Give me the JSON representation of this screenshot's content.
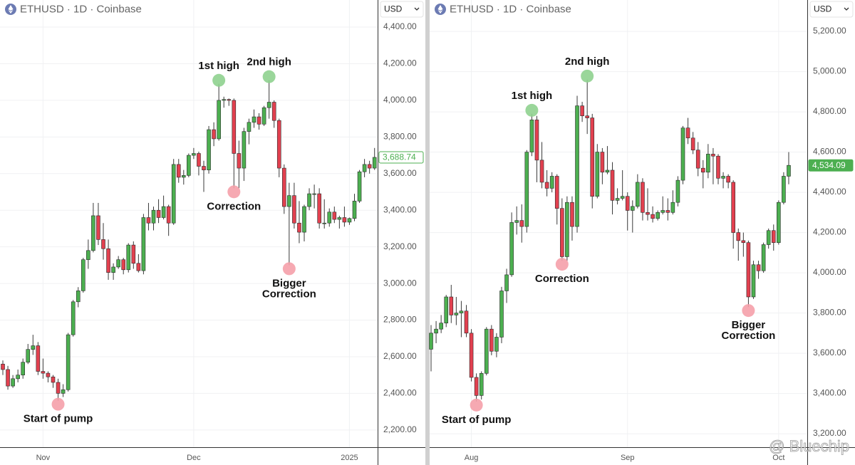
{
  "watermark": "@ Bluechip",
  "chart_data": [
    {
      "type": "candlestick",
      "title": "ETHUSD · 1D · Coinbase",
      "currency": "USD",
      "up_color": "#4caf50",
      "down_color": "#e2404f",
      "categories": [
        null,
        null,
        null,
        null,
        null,
        null,
        null,
        null,
        "Nov",
        null,
        null,
        null,
        null,
        null,
        null,
        null,
        null,
        null,
        null,
        null,
        null,
        null,
        null,
        null,
        null,
        null,
        null,
        null,
        null,
        null,
        null,
        null,
        null,
        null,
        null,
        null,
        null,
        null,
        "Dec",
        null,
        null,
        null,
        null,
        null,
        null,
        null,
        null,
        null,
        null,
        null,
        null,
        null,
        null,
        null,
        null,
        null,
        null,
        null,
        null,
        null,
        null,
        null,
        null,
        null,
        null,
        null,
        null,
        null,
        null,
        "2025",
        null,
        null,
        null,
        null,
        null
      ],
      "ohlc": [
        [
          2560,
          2580,
          2500,
          2530
        ],
        [
          2530,
          2550,
          2420,
          2440
        ],
        [
          2440,
          2500,
          2430,
          2480
        ],
        [
          2480,
          2530,
          2460,
          2500
        ],
        [
          2500,
          2590,
          2480,
          2570
        ],
        [
          2570,
          2670,
          2560,
          2640
        ],
        [
          2640,
          2720,
          2610,
          2660
        ],
        [
          2660,
          2680,
          2500,
          2520
        ],
        [
          2520,
          2590,
          2480,
          2510
        ],
        [
          2510,
          2520,
          2460,
          2490
        ],
        [
          2490,
          2500,
          2430,
          2460
        ],
        [
          2460,
          2480,
          2360,
          2400
        ],
        [
          2400,
          2450,
          2380,
          2420
        ],
        [
          2420,
          2730,
          2410,
          2720
        ],
        [
          2720,
          2910,
          2710,
          2900
        ],
        [
          2900,
          2980,
          2870,
          2960
        ],
        [
          2960,
          3140,
          2950,
          3130
        ],
        [
          3130,
          3240,
          3080,
          3180
        ],
        [
          3180,
          3440,
          3170,
          3370
        ],
        [
          3370,
          3440,
          3210,
          3240
        ],
        [
          3240,
          3330,
          3130,
          3190
        ],
        [
          3190,
          3240,
          3020,
          3060
        ],
        [
          3060,
          3110,
          3020,
          3090
        ],
        [
          3090,
          3150,
          3080,
          3130
        ],
        [
          3130,
          3140,
          3050,
          3075
        ],
        [
          3075,
          3220,
          3060,
          3210
        ],
        [
          3210,
          3230,
          3080,
          3110
        ],
        [
          3110,
          3160,
          3060,
          3070
        ],
        [
          3070,
          3380,
          3050,
          3360
        ],
        [
          3360,
          3440,
          3290,
          3330
        ],
        [
          3330,
          3420,
          3290,
          3400
        ],
        [
          3400,
          3460,
          3330,
          3360
        ],
        [
          3360,
          3480,
          3350,
          3420
        ],
        [
          3420,
          3430,
          3260,
          3330
        ],
        [
          3330,
          3680,
          3320,
          3650
        ],
        [
          3650,
          3680,
          3550,
          3580
        ],
        [
          3580,
          3620,
          3540,
          3590
        ],
        [
          3590,
          3710,
          3580,
          3700
        ],
        [
          3700,
          3740,
          3680,
          3710
        ],
        [
          3710,
          3720,
          3590,
          3640
        ],
        [
          3640,
          3670,
          3500,
          3620
        ],
        [
          3620,
          3860,
          3600,
          3840
        ],
        [
          3840,
          3880,
          3750,
          3790
        ],
        [
          3790,
          4090,
          3780,
          4000
        ],
        [
          4000,
          4020,
          3960,
          4005
        ],
        [
          4005,
          4010,
          3970,
          4000
        ],
        [
          4000,
          4010,
          3520,
          3710
        ],
        [
          3710,
          3780,
          3520,
          3630
        ],
        [
          3630,
          3850,
          3560,
          3830
        ],
        [
          3830,
          3900,
          3760,
          3880
        ],
        [
          3880,
          3950,
          3850,
          3910
        ],
        [
          3910,
          3930,
          3840,
          3870
        ],
        [
          3870,
          3970,
          3860,
          3960
        ],
        [
          3960,
          4110,
          3900,
          3990
        ],
        [
          3990,
          4000,
          3850,
          3890
        ],
        [
          3890,
          3900,
          3580,
          3630
        ],
        [
          3630,
          3650,
          3380,
          3420
        ],
        [
          3420,
          3550,
          3100,
          3480
        ],
        [
          3480,
          3550,
          3300,
          3330
        ],
        [
          3330,
          3450,
          3220,
          3280
        ],
        [
          3280,
          3430,
          3230,
          3420
        ],
        [
          3420,
          3520,
          3400,
          3490
        ],
        [
          3490,
          3540,
          3410,
          3490
        ],
        [
          3490,
          3520,
          3300,
          3330
        ],
        [
          3330,
          3460,
          3300,
          3330
        ],
        [
          3330,
          3410,
          3310,
          3390
        ],
        [
          3390,
          3420,
          3330,
          3350
        ],
        [
          3350,
          3370,
          3300,
          3360
        ],
        [
          3360,
          3420,
          3310,
          3335
        ],
        [
          3335,
          3360,
          3320,
          3355
        ],
        [
          3355,
          3490,
          3340,
          3450
        ],
        [
          3450,
          3620,
          3440,
          3610
        ],
        [
          3610,
          3680,
          3580,
          3650
        ],
        [
          3650,
          3670,
          3600,
          3630
        ],
        [
          3630,
          3740,
          3620,
          3688.74
        ]
      ],
      "ylim": [
        2106,
        4548
      ],
      "yticks": [
        {
          "value": 2200,
          "label": "2,200.00"
        },
        {
          "value": 2400,
          "label": "2,400.00"
        },
        {
          "value": 2600,
          "label": "2,600.00"
        },
        {
          "value": 2800,
          "label": "2,800.00"
        },
        {
          "value": 3000,
          "label": "3,000.00"
        },
        {
          "value": 3200,
          "label": "3,200.00"
        },
        {
          "value": 3400,
          "label": "3,400.00"
        },
        {
          "value": 3600,
          "label": "3,600.00"
        },
        {
          "value": 3800,
          "label": "3,800.00"
        },
        {
          "value": 4000,
          "label": "4,000.00"
        },
        {
          "value": 4200,
          "label": "4,200.00"
        },
        {
          "value": 4400,
          "label": "4,400.00"
        }
      ],
      "last_price": {
        "value": 3688.74,
        "label": "3,688.74"
      },
      "annotations": [
        [
          "Start of pump"
        ],
        [
          "1st high"
        ],
        [
          "Correction"
        ],
        [
          "2nd high"
        ],
        [
          "Bigger",
          "Correction"
        ]
      ]
    },
    {
      "type": "candlestick",
      "title": "ETHUSD · 1D · Coinbase",
      "currency": "USD",
      "up_color": "#4caf50",
      "down_color": "#e2404f",
      "categories": [
        null,
        null,
        null,
        null,
        null,
        null,
        null,
        null,
        "Aug",
        null,
        null,
        null,
        null,
        null,
        null,
        null,
        null,
        null,
        null,
        null,
        null,
        null,
        null,
        null,
        null,
        null,
        null,
        null,
        null,
        null,
        null,
        null,
        null,
        null,
        null,
        null,
        null,
        null,
        null,
        "Sep",
        null,
        null,
        null,
        null,
        null,
        null,
        null,
        null,
        null,
        null,
        null,
        null,
        null,
        null,
        null,
        null,
        null,
        null,
        null,
        null,
        null,
        null,
        null,
        null,
        null,
        null,
        null,
        null,
        null,
        "Oct",
        null,
        null
      ],
      "ohlc": [
        [
          3620,
          3740,
          3510,
          3700
        ],
        [
          3700,
          3760,
          3650,
          3720
        ],
        [
          3720,
          3790,
          3700,
          3750
        ],
        [
          3750,
          3890,
          3730,
          3880
        ],
        [
          3880,
          3940,
          3750,
          3790
        ],
        [
          3790,
          3880,
          3740,
          3800
        ],
        [
          3800,
          3860,
          3680,
          3810
        ],
        [
          3810,
          3840,
          3680,
          3700
        ],
        [
          3700,
          3720,
          3460,
          3480
        ],
        [
          3480,
          3500,
          3360,
          3390
        ],
        [
          3390,
          3510,
          3370,
          3500
        ],
        [
          3500,
          3730,
          3490,
          3720
        ],
        [
          3720,
          3740,
          3590,
          3610
        ],
        [
          3610,
          3700,
          3580,
          3680
        ],
        [
          3680,
          3930,
          3650,
          3910
        ],
        [
          3910,
          4020,
          3850,
          3990
        ],
        [
          3990,
          4300,
          3980,
          4250
        ],
        [
          4250,
          4330,
          4190,
          4260
        ],
        [
          4260,
          4340,
          4150,
          4230
        ],
        [
          4230,
          4610,
          4200,
          4600
        ],
        [
          4600,
          4790,
          4580,
          4760
        ],
        [
          4760,
          4780,
          4450,
          4560
        ],
        [
          4560,
          4650,
          4420,
          4450
        ],
        [
          4450,
          4510,
          4380,
          4420
        ],
        [
          4420,
          4500,
          4400,
          4480
        ],
        [
          4480,
          4490,
          4240,
          4320
        ],
        [
          4320,
          4370,
          4060,
          4080
        ],
        [
          4080,
          4380,
          4060,
          4350
        ],
        [
          4350,
          4380,
          4160,
          4230
        ],
        [
          4230,
          4880,
          4200,
          4830
        ],
        [
          4830,
          4850,
          4750,
          4780
        ],
        [
          4780,
          4960,
          4690,
          4770
        ],
        [
          4770,
          4790,
          4320,
          4380
        ],
        [
          4380,
          4640,
          4370,
          4600
        ],
        [
          4600,
          4620,
          4440,
          4500
        ],
        [
          4500,
          4630,
          4490,
          4510
        ],
        [
          4510,
          4550,
          4290,
          4360
        ],
        [
          4360,
          4420,
          4340,
          4370
        ],
        [
          4370,
          4510,
          4360,
          4380
        ],
        [
          4380,
          4400,
          4210,
          4310
        ],
        [
          4310,
          4360,
          4200,
          4330
        ],
        [
          4330,
          4490,
          4320,
          4450
        ],
        [
          4450,
          4470,
          4260,
          4300
        ],
        [
          4300,
          4420,
          4260,
          4290
        ],
        [
          4290,
          4330,
          4250,
          4270
        ],
        [
          4270,
          4310,
          4260,
          4300
        ],
        [
          4300,
          4380,
          4290,
          4310
        ],
        [
          4310,
          4370,
          4260,
          4300
        ],
        [
          4300,
          4410,
          4290,
          4350
        ],
        [
          4350,
          4480,
          4330,
          4460
        ],
        [
          4460,
          4730,
          4440,
          4720
        ],
        [
          4720,
          4770,
          4640,
          4670
        ],
        [
          4670,
          4700,
          4590,
          4610
        ],
        [
          4610,
          4650,
          4480,
          4520
        ],
        [
          4520,
          4560,
          4420,
          4500
        ],
        [
          4500,
          4640,
          4470,
          4590
        ],
        [
          4590,
          4620,
          4440,
          4580
        ],
        [
          4580,
          4590,
          4440,
          4470
        ],
        [
          4470,
          4500,
          4420,
          4480
        ],
        [
          4480,
          4490,
          4420,
          4450
        ],
        [
          4450,
          4460,
          4120,
          4200
        ],
        [
          4200,
          4220,
          4060,
          4160
        ],
        [
          4160,
          4200,
          4080,
          4150
        ],
        [
          4150,
          4160,
          3830,
          3880
        ],
        [
          3880,
          4060,
          3870,
          4040
        ],
        [
          4040,
          4060,
          3970,
          4010
        ],
        [
          4010,
          4150,
          4000,
          4140
        ],
        [
          4140,
          4220,
          4120,
          4210
        ],
        [
          4210,
          4240,
          4110,
          4150
        ],
        [
          4150,
          4360,
          4140,
          4350
        ],
        [
          4350,
          4500,
          4340,
          4480
        ],
        [
          4480,
          4600,
          4440,
          4534.09
        ]
      ],
      "ylim": [
        3133,
        5356
      ],
      "yticks": [
        {
          "value": 3200,
          "label": "3,200.00"
        },
        {
          "value": 3400,
          "label": "3,400.00"
        },
        {
          "value": 3600,
          "label": "3,600.00"
        },
        {
          "value": 3800,
          "label": "3,800.00"
        },
        {
          "value": 4000,
          "label": "4,000.00"
        },
        {
          "value": 4200,
          "label": "4,200.00"
        },
        {
          "value": 4400,
          "label": "4,400.00"
        },
        {
          "value": 4600,
          "label": "4,600.00"
        },
        {
          "value": 4800,
          "label": "4,800.00"
        },
        {
          "value": 5000,
          "label": "5,000.00"
        },
        {
          "value": 5200,
          "label": "5,200.00"
        }
      ],
      "last_price": {
        "value": 4534.09,
        "label": "4,534.09"
      },
      "annotations": [
        [
          "Start of pump"
        ],
        [
          "1st high"
        ],
        [
          "Correction"
        ],
        [
          "2nd high"
        ],
        [
          "Bigger",
          "Correction"
        ]
      ]
    }
  ]
}
